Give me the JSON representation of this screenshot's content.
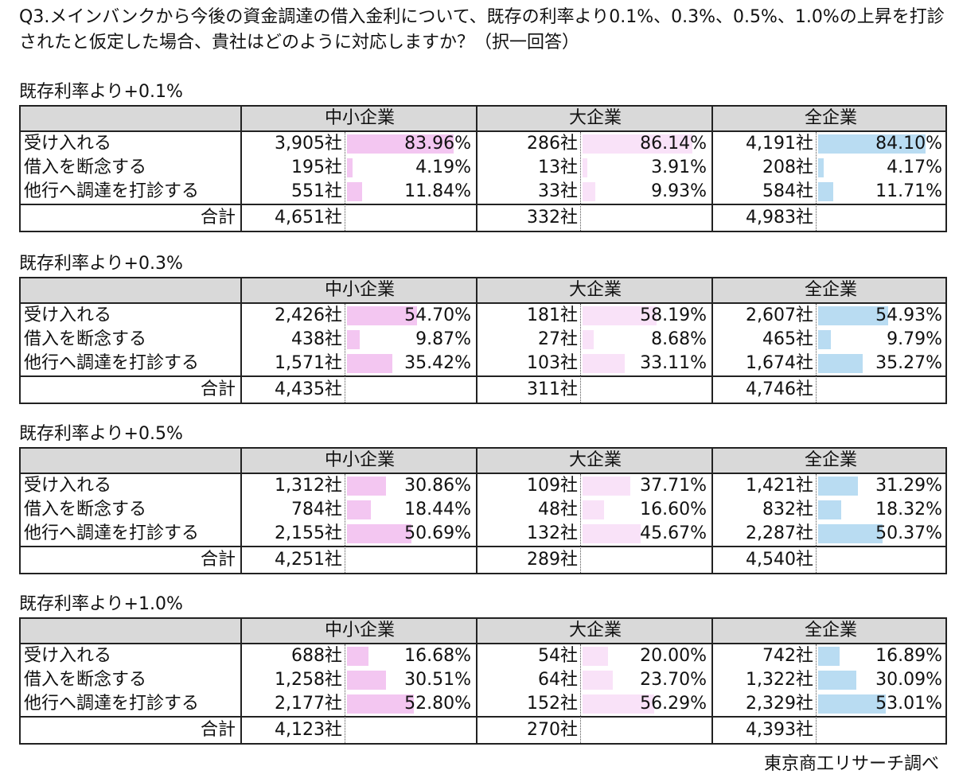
{
  "question": "Q3.メインバンクから今後の資金調達の借入金利について、既存の利率より0.1%、0.3%、0.5%、1.0%の上昇を打診されたと仮定した場合、貴社はどのように対応しますか？（択一回答）",
  "columns": [
    "中小企業",
    "大企業",
    "全企業"
  ],
  "total_label": "合計",
  "source": "東京商工リサーチ調べ",
  "colors": {
    "sme_bar": "#f3c6f1",
    "large_bar": "#f9e2f8",
    "all_bar": "#b9dcf2"
  },
  "sections": [
    {
      "title": "既存利率より+0.1%",
      "rows": [
        {
          "label": "受け入れる",
          "sme_count": "3,905社",
          "sme_pct": "83.96%",
          "sme_value": 83.96,
          "large_count": "286社",
          "large_pct": "86.14%",
          "large_value": 86.14,
          "all_count": "4,191社",
          "all_pct": "84.10%",
          "all_value": 84.1
        },
        {
          "label": "借入を断念する",
          "sme_count": "195社",
          "sme_pct": "4.19%",
          "sme_value": 4.19,
          "large_count": "13社",
          "large_pct": "3.91%",
          "large_value": 3.91,
          "all_count": "208社",
          "all_pct": "4.17%",
          "all_value": 4.17
        },
        {
          "label": "他行へ調達を打診する",
          "sme_count": "551社",
          "sme_pct": "11.84%",
          "sme_value": 11.84,
          "large_count": "33社",
          "large_pct": "9.93%",
          "large_value": 9.93,
          "all_count": "584社",
          "all_pct": "11.71%",
          "all_value": 11.71
        }
      ],
      "totals": {
        "sme": "4,651社",
        "large": "332社",
        "all": "4,983社"
      }
    },
    {
      "title": "既存利率より+0.3%",
      "rows": [
        {
          "label": "受け入れる",
          "sme_count": "2,426社",
          "sme_pct": "54.70%",
          "sme_value": 54.7,
          "large_count": "181社",
          "large_pct": "58.19%",
          "large_value": 58.19,
          "all_count": "2,607社",
          "all_pct": "54.93%",
          "all_value": 54.93
        },
        {
          "label": "借入を断念する",
          "sme_count": "438社",
          "sme_pct": "9.87%",
          "sme_value": 9.87,
          "large_count": "27社",
          "large_pct": "8.68%",
          "large_value": 8.68,
          "all_count": "465社",
          "all_pct": "9.79%",
          "all_value": 9.79
        },
        {
          "label": "他行へ調達を打診する",
          "sme_count": "1,571社",
          "sme_pct": "35.42%",
          "sme_value": 35.42,
          "large_count": "103社",
          "large_pct": "33.11%",
          "large_value": 33.11,
          "all_count": "1,674社",
          "all_pct": "35.27%",
          "all_value": 35.27
        }
      ],
      "totals": {
        "sme": "4,435社",
        "large": "311社",
        "all": "4,746社"
      }
    },
    {
      "title": "既存利率より+0.5%",
      "rows": [
        {
          "label": "受け入れる",
          "sme_count": "1,312社",
          "sme_pct": "30.86%",
          "sme_value": 30.86,
          "large_count": "109社",
          "large_pct": "37.71%",
          "large_value": 37.71,
          "all_count": "1,421社",
          "all_pct": "31.29%",
          "all_value": 31.29
        },
        {
          "label": "借入を断念する",
          "sme_count": "784社",
          "sme_pct": "18.44%",
          "sme_value": 18.44,
          "large_count": "48社",
          "large_pct": "16.60%",
          "large_value": 16.6,
          "all_count": "832社",
          "all_pct": "18.32%",
          "all_value": 18.32
        },
        {
          "label": "他行へ調達を打診する",
          "sme_count": "2,155社",
          "sme_pct": "50.69%",
          "sme_value": 50.69,
          "large_count": "132社",
          "large_pct": "45.67%",
          "large_value": 45.67,
          "all_count": "2,287社",
          "all_pct": "50.37%",
          "all_value": 50.37
        }
      ],
      "totals": {
        "sme": "4,251社",
        "large": "289社",
        "all": "4,540社"
      }
    },
    {
      "title": "既存利率より+1.0%",
      "rows": [
        {
          "label": "受け入れる",
          "sme_count": "688社",
          "sme_pct": "16.68%",
          "sme_value": 16.68,
          "large_count": "54社",
          "large_pct": "20.00%",
          "large_value": 20.0,
          "all_count": "742社",
          "all_pct": "16.89%",
          "all_value": 16.89
        },
        {
          "label": "借入を断念する",
          "sme_count": "1,258社",
          "sme_pct": "30.51%",
          "sme_value": 30.51,
          "large_count": "64社",
          "large_pct": "23.70%",
          "large_value": 23.7,
          "all_count": "1,322社",
          "all_pct": "30.09%",
          "all_value": 30.09
        },
        {
          "label": "他行へ調達を打診する",
          "sme_count": "2,177社",
          "sme_pct": "52.80%",
          "sme_value": 52.8,
          "large_count": "152社",
          "large_pct": "56.29%",
          "large_value": 56.29,
          "all_count": "2,329社",
          "all_pct": "53.01%",
          "all_value": 53.01
        }
      ],
      "totals": {
        "sme": "4,123社",
        "large": "270社",
        "all": "4,393社"
      }
    }
  ]
}
